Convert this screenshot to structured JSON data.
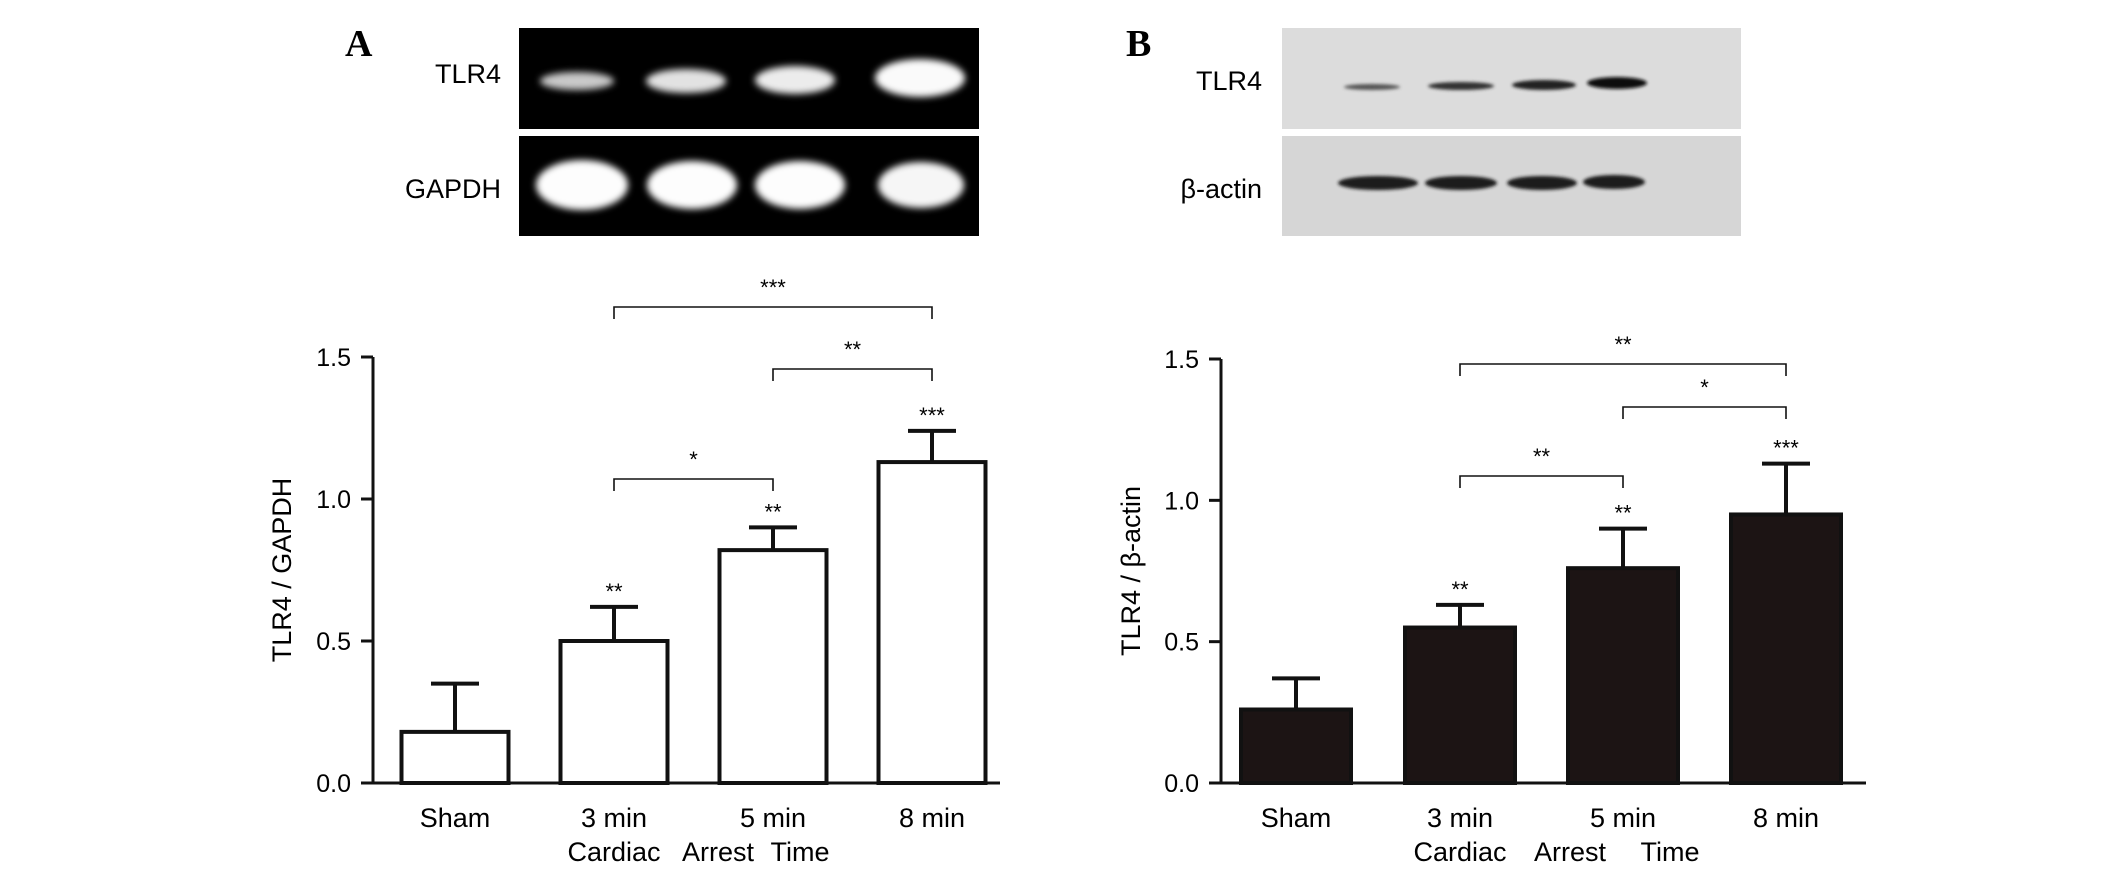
{
  "chart_data": [
    {
      "type": "bar",
      "panel": "A",
      "gel_labels": [
        "TLR4",
        "GAPDH"
      ],
      "categories": [
        "Sham",
        "3 min",
        "5 min",
        "8 min"
      ],
      "x_caption": [
        "Cardiac",
        "Arrest",
        "Time"
      ],
      "ylabel": "TLR4 / GAPDH",
      "ylim": [
        0,
        1.5
      ],
      "yticks": [
        "0.0",
        "0.5",
        "1.0",
        "1.5"
      ],
      "values": [
        0.18,
        0.5,
        0.82,
        1.13
      ],
      "errors": [
        0.17,
        0.12,
        0.08,
        0.11
      ],
      "bar_fill": "#ffffff",
      "bar_stroke": "#111111",
      "bar_marks": [
        "",
        "**",
        "**",
        "***"
      ],
      "brackets": [
        {
          "from": 1,
          "to": 2,
          "label": "*"
        },
        {
          "from": 2,
          "to": 3,
          "label": "**"
        },
        {
          "from": 1,
          "to": 3,
          "label": "***"
        }
      ]
    },
    {
      "type": "bar",
      "panel": "B",
      "gel_labels": [
        "TLR4",
        "β-actin"
      ],
      "categories": [
        "Sham",
        "3 min",
        "5 min",
        "8 min"
      ],
      "x_caption": [
        "Cardiac",
        "Arrest",
        "Time"
      ],
      "ylabel": "TLR4 / β-actin",
      "ylim": [
        0,
        1.5
      ],
      "yticks": [
        "0.0",
        "0.5",
        "1.0",
        "1.5"
      ],
      "values": [
        0.26,
        0.55,
        0.76,
        0.95
      ],
      "errors": [
        0.11,
        0.08,
        0.14,
        0.18
      ],
      "bar_fill": "#1c1414",
      "bar_stroke": "#111111",
      "bar_marks": [
        "",
        "**",
        "**",
        "***"
      ],
      "brackets": [
        {
          "from": 1,
          "to": 2,
          "label": "**"
        },
        {
          "from": 2,
          "to": 3,
          "label": "*"
        },
        {
          "from": 1,
          "to": 3,
          "label": "**"
        }
      ]
    }
  ]
}
